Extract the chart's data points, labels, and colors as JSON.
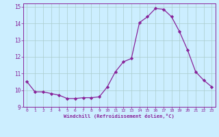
{
  "x": [
    0,
    1,
    2,
    3,
    4,
    5,
    6,
    7,
    8,
    9,
    10,
    11,
    12,
    13,
    14,
    15,
    16,
    17,
    18,
    19,
    20,
    21,
    22,
    23
  ],
  "y": [
    10.5,
    9.9,
    9.9,
    9.8,
    9.7,
    9.5,
    9.5,
    9.55,
    9.55,
    9.6,
    10.2,
    11.1,
    11.7,
    11.9,
    14.05,
    14.4,
    14.9,
    14.85,
    14.4,
    13.5,
    12.4,
    11.1,
    10.6,
    10.2
  ],
  "xlabel": "Windchill (Refroidissement éolien,°C)",
  "ylabel": "",
  "xlim": [
    -0.5,
    23.5
  ],
  "ylim": [
    9.0,
    15.2
  ],
  "yticks": [
    9,
    10,
    11,
    12,
    13,
    14,
    15
  ],
  "xticks": [
    0,
    1,
    2,
    3,
    4,
    5,
    6,
    7,
    8,
    9,
    10,
    11,
    12,
    13,
    14,
    15,
    16,
    17,
    18,
    19,
    20,
    21,
    22,
    23
  ],
  "line_color": "#882299",
  "marker_color": "#882299",
  "bg_color": "#cceeff",
  "grid_color": "#aacccc",
  "spine_color": "#882299",
  "tick_color": "#882299",
  "label_color": "#882299"
}
